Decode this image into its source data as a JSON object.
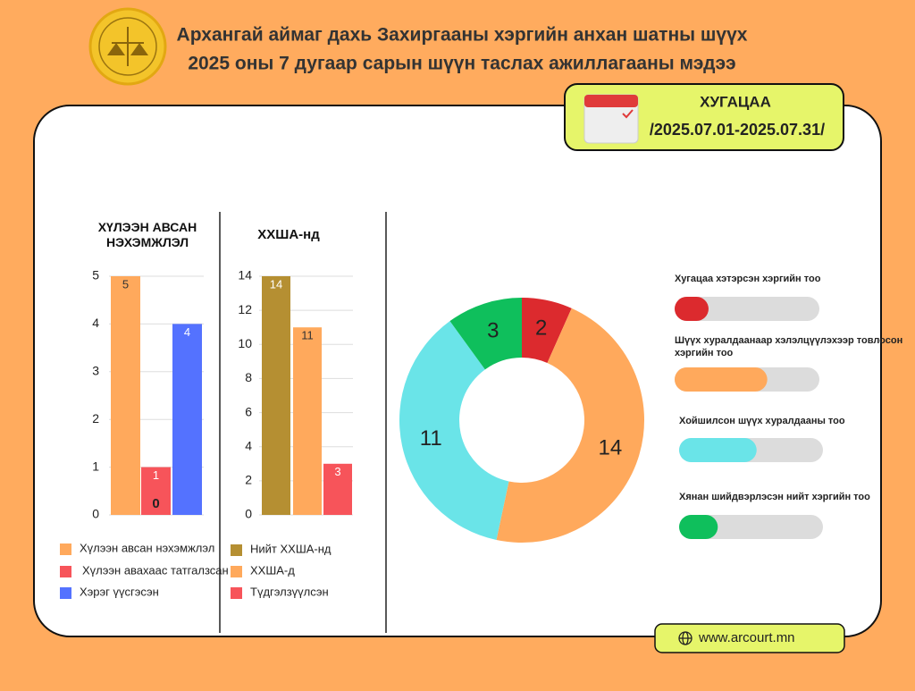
{
  "header": {
    "title_line1": "Архангай аймаг дахь Захиргааны хэргийн анхан шатны шүүх",
    "title_line2": "2025 оны 7 дугаар сарын шүүн таслах ажиллагааны мэдээ"
  },
  "period": {
    "label": "ХУГАЦАА",
    "range": "/2025.07.01-2025.07.31/"
  },
  "website": "www.arcourt.mn",
  "chart_data": [
    {
      "type": "bar",
      "title": "ХҮЛЭЭН АВСАН НЭХЭМЖЛЭЛ",
      "annotation": "0",
      "series": [
        {
          "name": "Хүлээн авсан нэхэмжлэл",
          "color": "#ffa95c",
          "values": [
            5
          ]
        },
        {
          "name": "Хүлээн авахаас татгалзсан",
          "color": "#f7545a",
          "values": [
            1
          ]
        },
        {
          "name": "Хэрэг үүсгэсэн",
          "color": "#5472ff",
          "values": [
            4
          ]
        }
      ],
      "ylim": [
        0,
        5
      ],
      "yticks": [
        0,
        1,
        2,
        3,
        4,
        5
      ],
      "grid": true
    },
    {
      "type": "bar",
      "title": "ХХША-нд",
      "series": [
        {
          "name": "Нийт ХХША-нд",
          "color": "#b58f32",
          "values": [
            14
          ]
        },
        {
          "name": "ХХША-д",
          "color": "#ffa95c",
          "values": [
            11
          ]
        },
        {
          "name": "Түдгэлзүүлсэн",
          "color": "#f7545a",
          "values": [
            3
          ]
        }
      ],
      "ylim": [
        0,
        14
      ],
      "yticks": [
        0,
        2,
        4,
        6,
        8,
        10,
        12,
        14
      ],
      "grid": true
    },
    {
      "type": "donut",
      "categories": [
        "Хугацаа хэтэрсэн хэргийн тоо",
        "Шүүх хуралдаанаар хэлэлцүүлэхээр товлосон хэргийн тоо",
        "Хойшилсон шүүх хуралдааны тоо",
        "Хянан шийдвэрлэсэн нийт хэргийн тоо"
      ],
      "values": [
        2,
        14,
        11,
        3
      ],
      "colors": [
        "#dc2a2e",
        "#ffa95c",
        "#6ae4e8",
        "#0fbf5c"
      ]
    }
  ]
}
